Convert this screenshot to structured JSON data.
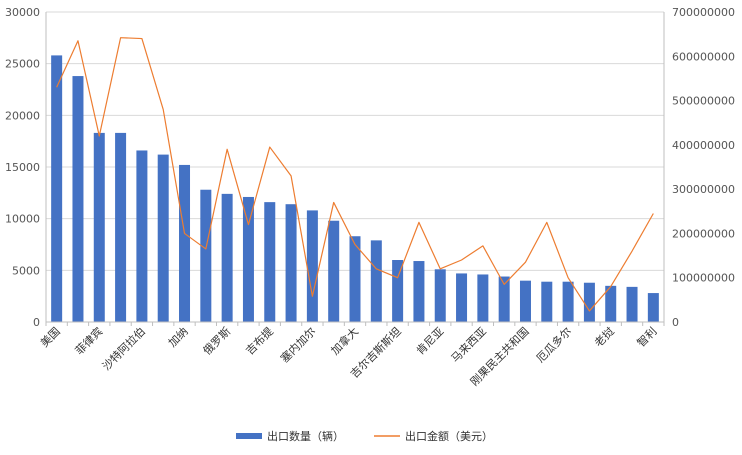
{
  "chart_data": {
    "type": "bar",
    "categories": [
      "美国",
      "",
      "菲律宾",
      "",
      "沙特阿拉伯",
      "",
      "加纳",
      "",
      "俄罗斯",
      "",
      "吉布提",
      "",
      "塞内加尔",
      "",
      "加拿大",
      "",
      "吉尔吉斯斯坦",
      "",
      "肯尼亚",
      "",
      "马来西亚",
      "",
      "刚果民主共和国",
      "",
      "厄瓜多尔",
      "",
      "老挝",
      "",
      "智利"
    ],
    "series": [
      {
        "name": "出口数量（辆）",
        "type": "bar",
        "axis": "left",
        "color": "#4472C4",
        "values": [
          25800,
          23800,
          18300,
          18300,
          16600,
          16200,
          15200,
          12800,
          12400,
          12100,
          11600,
          11400,
          10800,
          9800,
          8300,
          7900,
          6000,
          5900,
          5100,
          4700,
          4600,
          4400,
          4000,
          3900,
          3900,
          3800,
          3500,
          3400,
          2800
        ]
      },
      {
        "name": "出口金额（美元）",
        "type": "line",
        "axis": "right",
        "color": "#ED7D31",
        "values": [
          530000000,
          635000000,
          420000000,
          642000000,
          640000000,
          480000000,
          200000000,
          165000000,
          390000000,
          220000000,
          395000000,
          330000000,
          58000000,
          270000000,
          175000000,
          120000000,
          100000000,
          225000000,
          120000000,
          140000000,
          172000000,
          85000000,
          135000000,
          225000000,
          100000000,
          25000000,
          80000000,
          160000000,
          245000000
        ]
      }
    ],
    "y_left": {
      "min": 0,
      "max": 30000,
      "ticks": [
        "0",
        "5000",
        "10000",
        "15000",
        "20000",
        "25000",
        "30000"
      ]
    },
    "y_right": {
      "min": 0,
      "max": 700000000,
      "ticks": [
        "0",
        "100000000",
        "200000000",
        "300000000",
        "400000000",
        "500000000",
        "600000000",
        "700000000"
      ]
    },
    "grid": true,
    "legend": "bottom"
  }
}
